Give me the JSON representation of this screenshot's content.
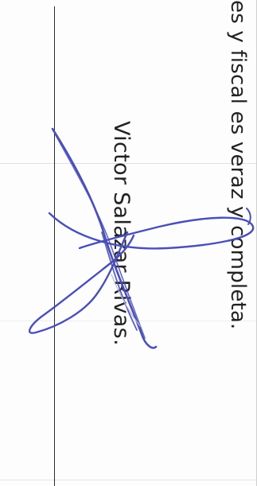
{
  "document": {
    "declaration_fragment": "es y fiscal es veraz y completa.",
    "signer_name": "Victor Salazar Rivas."
  },
  "colors": {
    "ink": "#222222",
    "signature_ink": "#4a4fb8",
    "rule": "#2b2b2b"
  }
}
